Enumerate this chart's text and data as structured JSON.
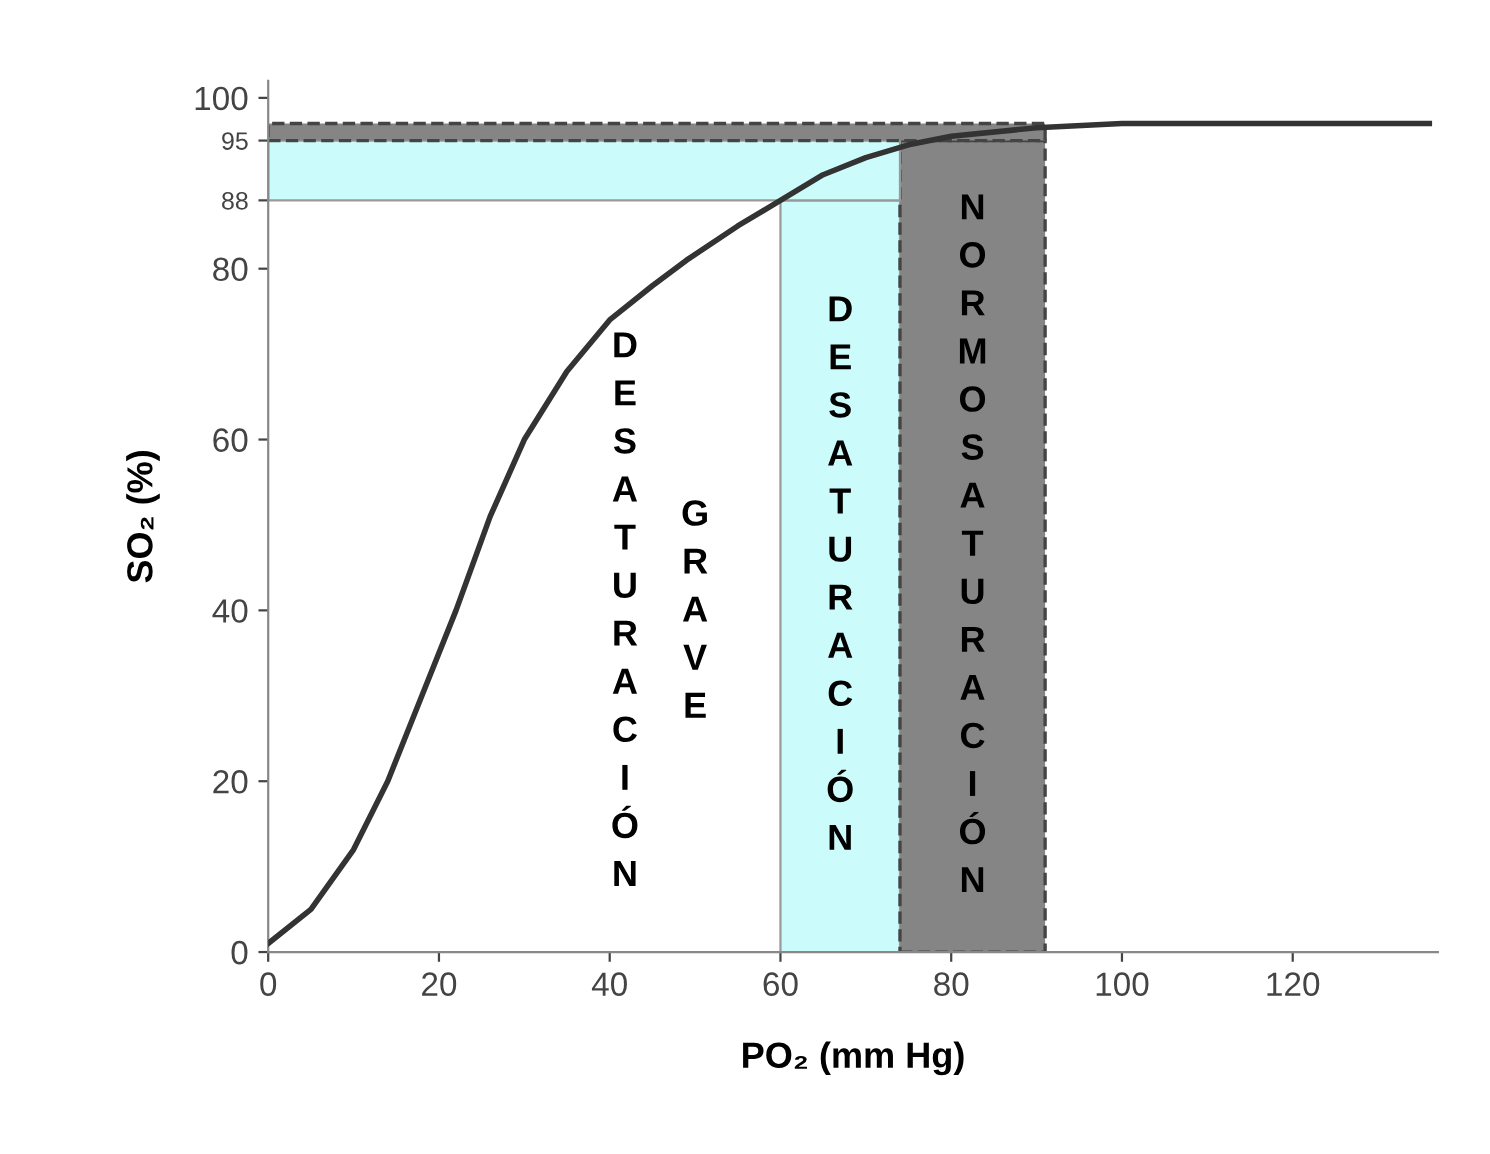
{
  "chart_data": {
    "type": "line",
    "xlabel": "PO₂ (mm Hg)",
    "ylabel": "SO₂ (%)",
    "x": [
      0,
      5,
      10,
      14,
      18,
      22,
      26,
      30,
      35,
      40,
      45,
      49,
      55,
      60,
      65,
      70,
      75,
      80,
      90,
      100,
      136
    ],
    "series": [
      {
        "color": "#333333",
        "values": [
          1,
          5,
          12,
          20,
          30,
          40,
          51,
          60,
          68,
          74,
          78,
          81,
          85,
          88,
          91,
          93,
          94.5,
          95.5,
          96.5,
          97,
          97
        ]
      }
    ],
    "xlim": [
      0,
      137
    ],
    "ylim": [
      0,
      102
    ],
    "xticks": [
      0,
      20,
      40,
      60,
      80,
      100,
      120
    ],
    "yticks": [
      0,
      20,
      40,
      60,
      80,
      88,
      95,
      100
    ],
    "bands": [
      {
        "axis": "x",
        "from": 60,
        "to": 74,
        "label": "DESATURACIÓN",
        "color": "#ccfbfb"
      },
      {
        "axis": "x",
        "from": 74,
        "to": 91,
        "label": "NORMOSATURACIÓN",
        "color": "#858585"
      },
      {
        "axis": "y",
        "from": 88,
        "to": 95,
        "color": "#ccfbfb"
      },
      {
        "axis": "y",
        "from": 95,
        "to": 97,
        "color": "#858585"
      }
    ],
    "annotations": [
      "DESATURACIÓN",
      "GRAVE"
    ],
    "grid": false,
    "marker": "none",
    "line_style": "solid",
    "legend": false
  }
}
